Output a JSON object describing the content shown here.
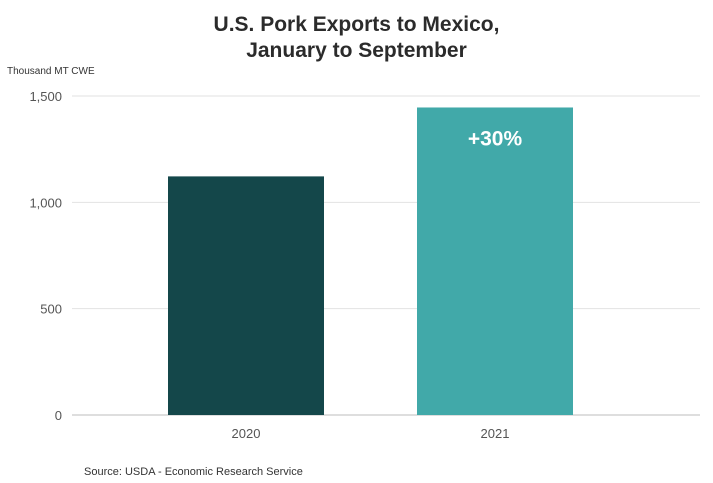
{
  "chart_data": {
    "type": "bar",
    "title_lines": [
      "U.S. Pork Exports to Mexico,",
      "January to September"
    ],
    "ylabel": "Thousand MT CWE",
    "categories": [
      "2020",
      "2021"
    ],
    "values": [
      1122,
      1446
    ],
    "bar_colors": [
      "#14474a",
      "#41a9a9"
    ],
    "annotation": {
      "category": "2021",
      "text": "+30%",
      "color": "#ffffff"
    },
    "yticks": [
      0,
      500,
      1000,
      1500
    ],
    "ytick_labels": [
      "0",
      "500",
      "1,000",
      "1,500"
    ],
    "ylim": [
      0,
      1500
    ],
    "grid": true,
    "legend": "none",
    "source": "Source: USDA - Economic Research Service"
  }
}
